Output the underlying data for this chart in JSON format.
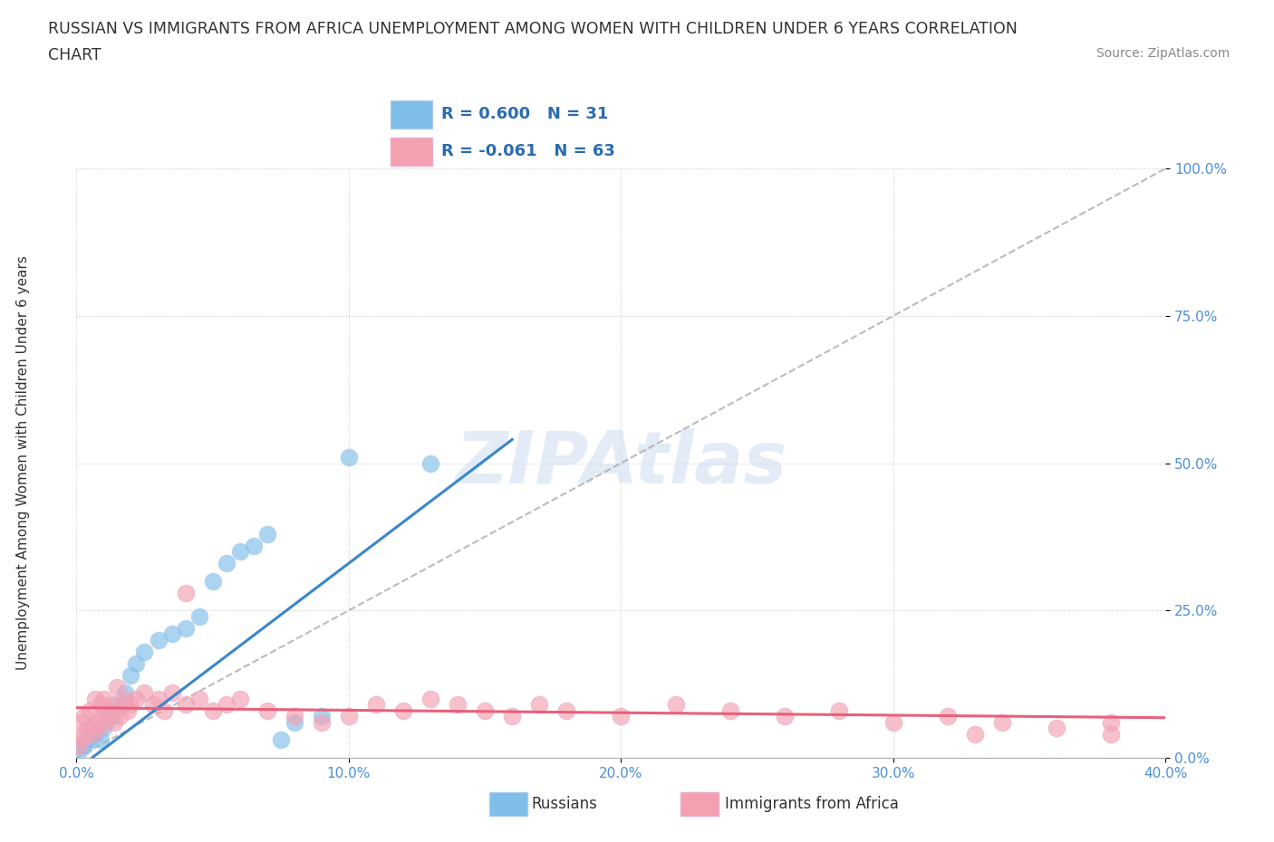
{
  "title_line1": "RUSSIAN VS IMMIGRANTS FROM AFRICA UNEMPLOYMENT AMONG WOMEN WITH CHILDREN UNDER 6 YEARS CORRELATION",
  "title_line2": "CHART",
  "source_text": "Source: ZipAtlas.com",
  "ylabel": "Unemployment Among Women with Children Under 6 years",
  "xlim": [
    0.0,
    0.4
  ],
  "ylim": [
    0.0,
    1.0
  ],
  "xticks": [
    0.0,
    0.1,
    0.2,
    0.3,
    0.4
  ],
  "yticks": [
    0.0,
    0.25,
    0.5,
    0.75,
    1.0
  ],
  "xticklabels": [
    "0.0%",
    "10.0%",
    "20.0%",
    "30.0%",
    "40.0%"
  ],
  "yticklabels": [
    "0.0%",
    "25.0%",
    "50.0%",
    "75.0%",
    "100.0%"
  ],
  "russian_color": "#7fbee8",
  "africa_color": "#f4a0b0",
  "russian_line_color": "#3a86cc",
  "africa_line_color": "#e8607a",
  "russian_R": 0.6,
  "russian_N": 31,
  "africa_R": -0.061,
  "africa_N": 63,
  "legend_label_russian": "Russians",
  "legend_label_africa": "Immigrants from Africa",
  "watermark": "ZIPAtlas",
  "background_color": "#ffffff",
  "russian_x": [
    0.001,
    0.002,
    0.003,
    0.004,
    0.005,
    0.006,
    0.007,
    0.008,
    0.009,
    0.01,
    0.011,
    0.013,
    0.015,
    0.018,
    0.02,
    0.022,
    0.025,
    0.03,
    0.035,
    0.04,
    0.045,
    0.05,
    0.055,
    0.06,
    0.065,
    0.07,
    0.075,
    0.08,
    0.09,
    0.1,
    0.13
  ],
  "russian_y": [
    0.01,
    0.02,
    0.02,
    0.03,
    0.03,
    0.04,
    0.04,
    0.05,
    0.03,
    0.05,
    0.06,
    0.07,
    0.09,
    0.11,
    0.14,
    0.16,
    0.18,
    0.2,
    0.21,
    0.22,
    0.24,
    0.3,
    0.33,
    0.35,
    0.36,
    0.38,
    0.03,
    0.06,
    0.07,
    0.51,
    0.5
  ],
  "africa_x": [
    0.001,
    0.002,
    0.002,
    0.003,
    0.003,
    0.004,
    0.005,
    0.005,
    0.006,
    0.007,
    0.007,
    0.008,
    0.009,
    0.009,
    0.01,
    0.01,
    0.011,
    0.012,
    0.013,
    0.014,
    0.015,
    0.015,
    0.016,
    0.017,
    0.018,
    0.019,
    0.02,
    0.022,
    0.025,
    0.028,
    0.03,
    0.032,
    0.035,
    0.04,
    0.045,
    0.05,
    0.055,
    0.06,
    0.07,
    0.08,
    0.09,
    0.1,
    0.11,
    0.12,
    0.13,
    0.14,
    0.15,
    0.16,
    0.17,
    0.18,
    0.2,
    0.22,
    0.24,
    0.26,
    0.28,
    0.3,
    0.32,
    0.34,
    0.36,
    0.38,
    0.04,
    0.33,
    0.38
  ],
  "africa_y": [
    0.02,
    0.03,
    0.06,
    0.04,
    0.07,
    0.05,
    0.05,
    0.08,
    0.04,
    0.06,
    0.1,
    0.05,
    0.07,
    0.09,
    0.06,
    0.1,
    0.08,
    0.07,
    0.09,
    0.06,
    0.08,
    0.12,
    0.07,
    0.09,
    0.1,
    0.08,
    0.09,
    0.1,
    0.11,
    0.09,
    0.1,
    0.08,
    0.11,
    0.09,
    0.1,
    0.08,
    0.09,
    0.1,
    0.08,
    0.07,
    0.06,
    0.07,
    0.09,
    0.08,
    0.1,
    0.09,
    0.08,
    0.07,
    0.09,
    0.08,
    0.07,
    0.09,
    0.08,
    0.07,
    0.08,
    0.06,
    0.07,
    0.06,
    0.05,
    0.04,
    0.28,
    0.04,
    0.06
  ],
  "dash_line_x": [
    0.0,
    0.4
  ],
  "dash_line_y": [
    0.0,
    1.0
  ],
  "russian_trendline_x0": 0.0,
  "russian_trendline_y0": -0.02,
  "russian_trendline_x1": 0.16,
  "russian_trendline_y1": 0.54,
  "africa_trendline_x0": 0.0,
  "africa_trendline_y0": 0.085,
  "africa_trendline_x1": 0.4,
  "africa_trendline_y1": 0.068
}
